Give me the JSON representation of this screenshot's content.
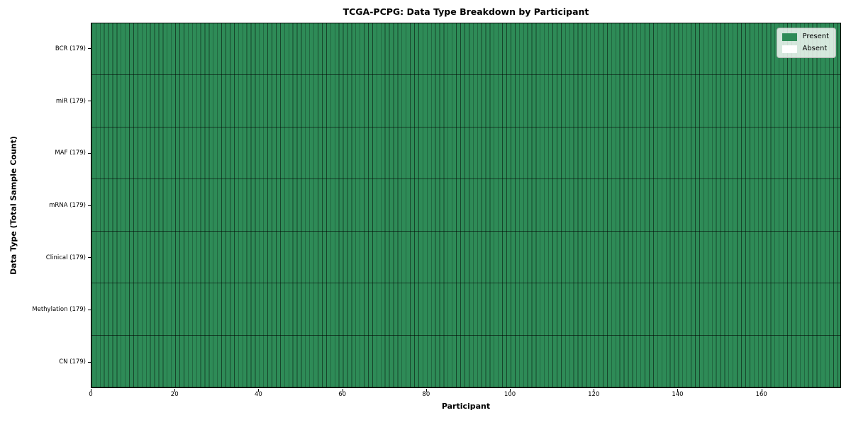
{
  "chart_data": {
    "type": "heatmap",
    "title": "TCGA-PCPG: Data Type Breakdown by Participant",
    "xlabel": "Participant",
    "ylabel": "Data Type (Total Sample Count)",
    "n_participants": 179,
    "x_range": [
      0,
      179
    ],
    "x_ticks": [
      0,
      20,
      40,
      60,
      80,
      100,
      120,
      140,
      160
    ],
    "rows": [
      {
        "label": "BCR (179)",
        "present_count": 179,
        "absent_count": 0
      },
      {
        "label": "miR (179)",
        "present_count": 179,
        "absent_count": 0
      },
      {
        "label": "MAF (179)",
        "present_count": 179,
        "absent_count": 0
      },
      {
        "label": "mRNA (179)",
        "present_count": 179,
        "absent_count": 0
      },
      {
        "label": "Clinical (179)",
        "present_count": 179,
        "absent_count": 0
      },
      {
        "label": "Methylation (179)",
        "present_count": 179,
        "absent_count": 0
      },
      {
        "label": "CN (179)",
        "present_count": 179,
        "absent_count": 0
      }
    ],
    "cell_fill": "every cell Present (green) for all rows and all 179 participants",
    "legend": {
      "position": "upper right",
      "entries": [
        {
          "label": "Present",
          "color": "#2e8b57"
        },
        {
          "label": "Absent",
          "color": "#ffffff"
        }
      ]
    },
    "colors": {
      "present": "#2e8b57",
      "absent": "#ffffff",
      "cell_edge": "rgba(0,0,0,0.5)",
      "spine": "#000000"
    }
  }
}
